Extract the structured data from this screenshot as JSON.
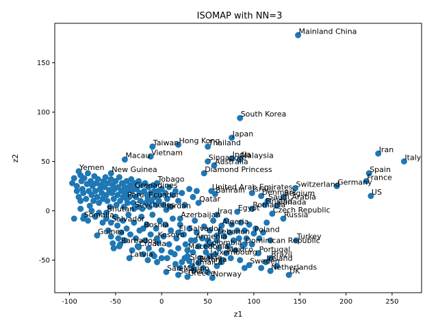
{
  "chart_data": {
    "type": "scatter",
    "title": "ISOMAP with NN=3",
    "xlabel": "z1",
    "ylabel": "z2",
    "xlim": [
      -116,
      282
    ],
    "ylim": [
      -83,
      190
    ],
    "xticks": [
      -100,
      -50,
      0,
      50,
      100,
      150,
      200,
      250
    ],
    "yticks": [
      -50,
      0,
      50,
      100,
      150
    ],
    "marker_color": "#1f77b4",
    "grid": false,
    "legend": "none",
    "points": [
      {
        "x": 148,
        "y": 178,
        "label": "Mainland China"
      },
      {
        "x": 85,
        "y": 94,
        "label": "South Korea"
      },
      {
        "x": 76,
        "y": 74,
        "label": "Japan"
      },
      {
        "x": 18,
        "y": 67,
        "label": "Hong Kong"
      },
      {
        "x": 50,
        "y": 65,
        "label": "Thailand"
      },
      {
        "x": -10,
        "y": 65,
        "label": "Taiwan"
      },
      {
        "x": 235,
        "y": 58,
        "label": "Iran"
      },
      {
        "x": -12,
        "y": 55,
        "label": "Vietnam"
      },
      {
        "x": 76,
        "y": 53,
        "label": "India"
      },
      {
        "x": 85,
        "y": 52,
        "label": "Malaysia"
      },
      {
        "x": 50,
        "y": 50,
        "label": "Singapore"
      },
      {
        "x": -40,
        "y": 52,
        "label": "Macau"
      },
      {
        "x": 263,
        "y": 50,
        "label": "Italy"
      },
      {
        "x": 57,
        "y": 46,
        "label": "Australia"
      },
      {
        "x": 225,
        "y": 38,
        "label": "Spain"
      },
      {
        "x": 46,
        "y": 38,
        "label": "Diamond Princess"
      },
      {
        "x": 222,
        "y": 30,
        "label": "France"
      },
      {
        "x": 190,
        "y": 25,
        "label": "Germany"
      },
      {
        "x": 145,
        "y": 23,
        "label": "Switzerland"
      },
      {
        "x": 54,
        "y": 20,
        "label": "United Arab Emirates"
      },
      {
        "x": 98,
        "y": 18,
        "label": "Israel"
      },
      {
        "x": 58,
        "y": 17,
        "label": "Bahrain"
      },
      {
        "x": 108,
        "y": 15,
        "label": "Denmark"
      },
      {
        "x": 227,
        "y": 15,
        "label": "US"
      },
      {
        "x": 132,
        "y": 14,
        "label": "Belgium"
      },
      {
        "x": 115,
        "y": 10,
        "label": "Saudi Arabia"
      },
      {
        "x": 112,
        "y": 6,
        "label": "Finland"
      },
      {
        "x": 125,
        "y": 5,
        "label": "Canada"
      },
      {
        "x": 98,
        "y": 2,
        "label": "Romania"
      },
      {
        "x": 82,
        "y": -1,
        "label": "Egypt"
      },
      {
        "x": 120,
        "y": -3,
        "label": "Czech Republic"
      },
      {
        "x": 132,
        "y": -8,
        "label": "Russia"
      },
      {
        "x": 60,
        "y": -4,
        "label": "Iraq"
      },
      {
        "x": 40,
        "y": 8,
        "label": "Qatar"
      },
      {
        "x": 5,
        "y": 1,
        "label": "Jordan"
      },
      {
        "x": 20,
        "y": -8,
        "label": "Azerbaijan"
      },
      {
        "x": 65,
        "y": -15,
        "label": "Algeria"
      },
      {
        "x": 18,
        "y": -22,
        "label": "El Salvador"
      },
      {
        "x": 36,
        "y": -30,
        "label": "Armenia"
      },
      {
        "x": 60,
        "y": -25,
        "label": "Lebanon"
      },
      {
        "x": 146,
        "y": -30,
        "label": "Turkey"
      },
      {
        "x": 100,
        "y": -23,
        "label": "Poland"
      },
      {
        "x": 90,
        "y": -34,
        "label": "Dominican Republic"
      },
      {
        "x": 48,
        "y": -36,
        "label": "Colombia"
      },
      {
        "x": 70,
        "y": -43,
        "label": "Mexico"
      },
      {
        "x": 52,
        "y": -46,
        "label": "Luxembourg"
      },
      {
        "x": 105,
        "y": -43,
        "label": "Portugal"
      },
      {
        "x": 118,
        "y": -48,
        "label": "Brazil"
      },
      {
        "x": 113,
        "y": -52,
        "label": "Ireland"
      },
      {
        "x": 95,
        "y": -55,
        "label": "Sweden"
      },
      {
        "x": -35,
        "y": -48,
        "label": "Latvia"
      },
      {
        "x": 30,
        "y": -51,
        "label": "Slovakia"
      },
      {
        "x": 40,
        "y": -53,
        "label": "Estonia"
      },
      {
        "x": 33,
        "y": -56,
        "label": "Jamaica"
      },
      {
        "x": 118,
        "y": -61,
        "label": "Netherlands"
      },
      {
        "x": 5,
        "y": -62,
        "label": "San Marino"
      },
      {
        "x": 138,
        "y": -65,
        "label": "UK"
      },
      {
        "x": 18,
        "y": -65,
        "label": "Serbia"
      },
      {
        "x": 28,
        "y": -67,
        "label": "Greece"
      },
      {
        "x": 55,
        "y": -68,
        "label": "Norway"
      },
      {
        "x": -90,
        "y": 40,
        "label": "Yemen"
      },
      {
        "x": -55,
        "y": 38,
        "label": "New Guinea"
      },
      {
        "x": -5,
        "y": 28,
        "label": "Tobago"
      },
      {
        "x": -30,
        "y": 22,
        "label": "Grenadines"
      },
      {
        "x": -38,
        "y": 12,
        "label": "Peru"
      },
      {
        "x": -15,
        "y": 12,
        "label": "Ecuador"
      },
      {
        "x": -55,
        "y": -12,
        "label": "Salvador"
      },
      {
        "x": -20,
        "y": -18,
        "label": "Bosnia"
      },
      {
        "x": -45,
        "y": -34,
        "label": "Barbados"
      },
      {
        "x": 28,
        "y": -40,
        "label": "Macedonia"
      },
      {
        "x": -25,
        "y": -37,
        "label": "Croatia"
      },
      {
        "x": -85,
        "y": -8,
        "label": "Somalia"
      },
      {
        "x": -30,
        "y": 2,
        "label": "Seychelles"
      },
      {
        "x": -60,
        "y": -2,
        "label": "Bhutan"
      },
      {
        "x": -70,
        "y": -25,
        "label": "Guinea"
      },
      {
        "x": -5,
        "y": -28,
        "label": "Kosovo"
      }
    ],
    "unlabeled": [
      [
        -97,
        28
      ],
      [
        -95,
        33
      ],
      [
        -92,
        20
      ],
      [
        -92,
        25
      ],
      [
        -90,
        14
      ],
      [
        -88,
        36
      ],
      [
        -88,
        10
      ],
      [
        -87,
        30
      ],
      [
        -86,
        22
      ],
      [
        -85,
        18
      ],
      [
        -84,
        33
      ],
      [
        -82,
        12
      ],
      [
        -81,
        27
      ],
      [
        -80,
        38
      ],
      [
        -79,
        20
      ],
      [
        -78,
        5
      ],
      [
        -77,
        30
      ],
      [
        -76,
        16
      ],
      [
        -75,
        25
      ],
      [
        -74,
        10
      ],
      [
        -73,
        35
      ],
      [
        -72,
        20
      ],
      [
        -71,
        28
      ],
      [
        -70,
        14
      ],
      [
        -69,
        32
      ],
      [
        -68,
        8
      ],
      [
        -67,
        22
      ],
      [
        -66,
        26
      ],
      [
        -65,
        18
      ],
      [
        -64,
        12
      ],
      [
        -63,
        30
      ],
      [
        -62,
        24
      ],
      [
        -61,
        34
      ],
      [
        -60,
        16
      ],
      [
        -59,
        10
      ],
      [
        -58,
        28
      ],
      [
        -57,
        21
      ],
      [
        -56,
        4
      ],
      [
        -55,
        32
      ],
      [
        -54,
        18
      ],
      [
        -53,
        26
      ],
      [
        -52,
        12
      ],
      [
        -51,
        22
      ],
      [
        -50,
        30
      ],
      [
        -49,
        6
      ],
      [
        -48,
        16
      ],
      [
        -47,
        24
      ],
      [
        -46,
        34
      ],
      [
        -45,
        10
      ],
      [
        -44,
        20
      ],
      [
        -43,
        28
      ],
      [
        -42,
        14
      ],
      [
        -41,
        4
      ],
      [
        -40,
        24
      ],
      [
        -39,
        18
      ],
      [
        -38,
        30
      ],
      [
        -37,
        8
      ],
      [
        -36,
        22
      ],
      [
        -35,
        14
      ],
      [
        -34,
        26
      ],
      [
        -33,
        32
      ],
      [
        -32,
        20
      ],
      [
        -31,
        8
      ],
      [
        -29,
        28
      ],
      [
        -28,
        14
      ],
      [
        -27,
        22
      ],
      [
        -26,
        4
      ],
      [
        -25,
        30
      ],
      [
        -24,
        18
      ],
      [
        -23,
        10
      ],
      [
        -22,
        26
      ],
      [
        -21,
        2
      ],
      [
        -19,
        20
      ],
      [
        -18,
        28
      ],
      [
        -17,
        8
      ],
      [
        -16,
        16
      ],
      [
        -14,
        24
      ],
      [
        -13,
        4
      ],
      [
        -12,
        18
      ],
      [
        -11,
        10
      ],
      [
        -9,
        26
      ],
      [
        -8,
        20
      ],
      [
        -7,
        14
      ],
      [
        -6,
        6
      ],
      [
        -4,
        20
      ],
      [
        -3,
        10
      ],
      [
        -2,
        16
      ],
      [
        0,
        22
      ],
      [
        2,
        6
      ],
      [
        4,
        18
      ],
      [
        6,
        12
      ],
      [
        8,
        24
      ],
      [
        10,
        4
      ],
      [
        12,
        16
      ],
      [
        15,
        20
      ],
      [
        18,
        10
      ],
      [
        22,
        18
      ],
      [
        25,
        6
      ],
      [
        30,
        22
      ],
      [
        34,
        14
      ],
      [
        38,
        20
      ],
      [
        -95,
        -8
      ],
      [
        -88,
        2
      ],
      [
        -84,
        -5
      ],
      [
        -80,
        -10
      ],
      [
        -76,
        0
      ],
      [
        -72,
        -6
      ],
      [
        -68,
        -2
      ],
      [
        -64,
        -12
      ],
      [
        -60,
        -8
      ],
      [
        -58,
        -20
      ],
      [
        -55,
        -26
      ],
      [
        -53,
        -33
      ],
      [
        -52,
        -38
      ],
      [
        -50,
        -6
      ],
      [
        -48,
        -15
      ],
      [
        -47,
        -28
      ],
      [
        -46,
        -36
      ],
      [
        -44,
        -22
      ],
      [
        -42,
        -10
      ],
      [
        -40,
        -30
      ],
      [
        -38,
        -18
      ],
      [
        -36,
        -4
      ],
      [
        -34,
        -24
      ],
      [
        -32,
        -40
      ],
      [
        -30,
        -12
      ],
      [
        -28,
        -28
      ],
      [
        -26,
        -36
      ],
      [
        -24,
        -20
      ],
      [
        -22,
        -6
      ],
      [
        -20,
        -44
      ],
      [
        -18,
        -30
      ],
      [
        -16,
        -14
      ],
      [
        -14,
        -38
      ],
      [
        -12,
        -24
      ],
      [
        -10,
        -4
      ],
      [
        -8,
        -46
      ],
      [
        -6,
        -18
      ],
      [
        -4,
        -32
      ],
      [
        -2,
        -10
      ],
      [
        0,
        -40
      ],
      [
        2,
        -26
      ],
      [
        4,
        -14
      ],
      [
        6,
        -48
      ],
      [
        8,
        -34
      ],
      [
        10,
        -20
      ],
      [
        12,
        -8
      ],
      [
        14,
        -44
      ],
      [
        16,
        -28
      ],
      [
        18,
        -38
      ],
      [
        20,
        -14
      ],
      [
        22,
        -52
      ],
      [
        24,
        -24
      ],
      [
        26,
        -34
      ],
      [
        28,
        -46
      ],
      [
        30,
        -18
      ],
      [
        32,
        -30
      ],
      [
        34,
        -42
      ],
      [
        36,
        -10
      ],
      [
        38,
        -22
      ],
      [
        40,
        -36
      ],
      [
        42,
        -48
      ],
      [
        44,
        -28
      ],
      [
        46,
        -16
      ],
      [
        48,
        -42
      ],
      [
        50,
        -30
      ],
      [
        52,
        -20
      ],
      [
        54,
        -34
      ],
      [
        56,
        -10
      ],
      [
        58,
        -44
      ],
      [
        60,
        -30
      ],
      [
        62,
        -38
      ],
      [
        64,
        -20
      ],
      [
        66,
        -50
      ],
      [
        68,
        -26
      ],
      [
        70,
        -10
      ],
      [
        72,
        -36
      ],
      [
        74,
        -22
      ],
      [
        76,
        -14
      ],
      [
        78,
        -30
      ],
      [
        80,
        -40
      ],
      [
        82,
        -20
      ],
      [
        84,
        -28
      ],
      [
        86,
        -12
      ],
      [
        88,
        -36
      ],
      [
        90,
        -20
      ],
      [
        92,
        -28
      ],
      [
        95,
        -14
      ],
      [
        98,
        -34
      ],
      [
        102,
        -18
      ],
      [
        106,
        -28
      ],
      [
        110,
        -22
      ],
      [
        114,
        -12
      ],
      [
        118,
        -30
      ],
      [
        -15,
        -50
      ],
      [
        -10,
        -44
      ],
      [
        -5,
        -52
      ],
      [
        0,
        -48
      ],
      [
        10,
        -42
      ],
      [
        15,
        -54
      ],
      [
        20,
        -58
      ],
      [
        25,
        -48
      ],
      [
        35,
        -60
      ],
      [
        45,
        -58
      ],
      [
        50,
        -62
      ],
      [
        60,
        -56
      ],
      [
        65,
        -52
      ],
      [
        75,
        -48
      ],
      [
        85,
        -50
      ],
      [
        90,
        -58
      ],
      [
        108,
        -58
      ],
      [
        125,
        -56
      ]
    ]
  }
}
